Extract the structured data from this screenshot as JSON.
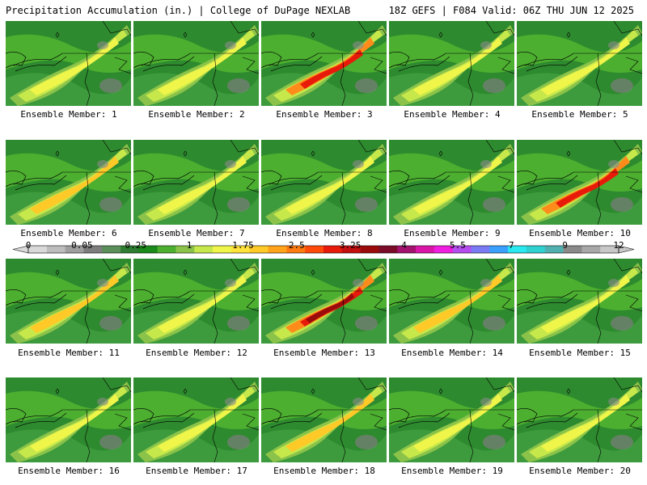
{
  "header": {
    "title_left": "Precipitation Accumulation (in.) | College of DuPage NEXLAB",
    "title_right": "18Z GEFS | F084 Valid: 06Z THU JUN 12 2025"
  },
  "legend": {
    "labels": [
      "0",
      "0.05",
      "0.25",
      "1",
      "1.75",
      "2.5",
      "3.25",
      "4",
      "5.5",
      "7",
      "9",
      "12"
    ],
    "colors": [
      "#d9d9d9",
      "#bdbdbd",
      "#9e9e9e",
      "#7d7d7d",
      "#5a8f5a",
      "#2e7d32",
      "#1a8a1a",
      "#4caf30",
      "#8bc34a",
      "#c6e84a",
      "#f0f54a",
      "#ffe23a",
      "#ffc928",
      "#ffa31a",
      "#ff7a10",
      "#ff4a0a",
      "#e81a0a",
      "#c40f0f",
      "#9c0b0b",
      "#7a0c2a",
      "#a3126e",
      "#d916a8",
      "#f01ee0",
      "#b44cf0",
      "#7a7af5",
      "#3aa0ff",
      "#2ae8f0",
      "#30d0d0",
      "#50b0b0",
      "#8a8a8a",
      "#a8a8a8",
      "#c8c8c8"
    ]
  },
  "members": [
    {
      "label": "Ensemble Member: 1",
      "intensity": 1
    },
    {
      "label": "Ensemble Member: 2",
      "intensity": 1
    },
    {
      "label": "Ensemble Member: 3",
      "intensity": 3
    },
    {
      "label": "Ensemble Member: 4",
      "intensity": 1
    },
    {
      "label": "Ensemble Member: 5",
      "intensity": 1
    },
    {
      "label": "Ensemble Member: 6",
      "intensity": 2
    },
    {
      "label": "Ensemble Member: 7",
      "intensity": 1
    },
    {
      "label": "Ensemble Member: 8",
      "intensity": 1
    },
    {
      "label": "Ensemble Member: 9",
      "intensity": 1
    },
    {
      "label": "Ensemble Member: 10",
      "intensity": 3
    },
    {
      "label": "Ensemble Member: 11",
      "intensity": 2
    },
    {
      "label": "Ensemble Member: 12",
      "intensity": 1
    },
    {
      "label": "Ensemble Member: 13",
      "intensity": 4
    },
    {
      "label": "Ensemble Member: 14",
      "intensity": 2
    },
    {
      "label": "Ensemble Member: 15",
      "intensity": 1
    },
    {
      "label": "Ensemble Member: 16",
      "intensity": 0
    },
    {
      "label": "Ensemble Member: 17",
      "intensity": 1
    },
    {
      "label": "Ensemble Member: 18",
      "intensity": 2
    },
    {
      "label": "Ensemble Member: 19",
      "intensity": 1
    },
    {
      "label": "Ensemble Member: 20",
      "intensity": 1
    }
  ]
}
